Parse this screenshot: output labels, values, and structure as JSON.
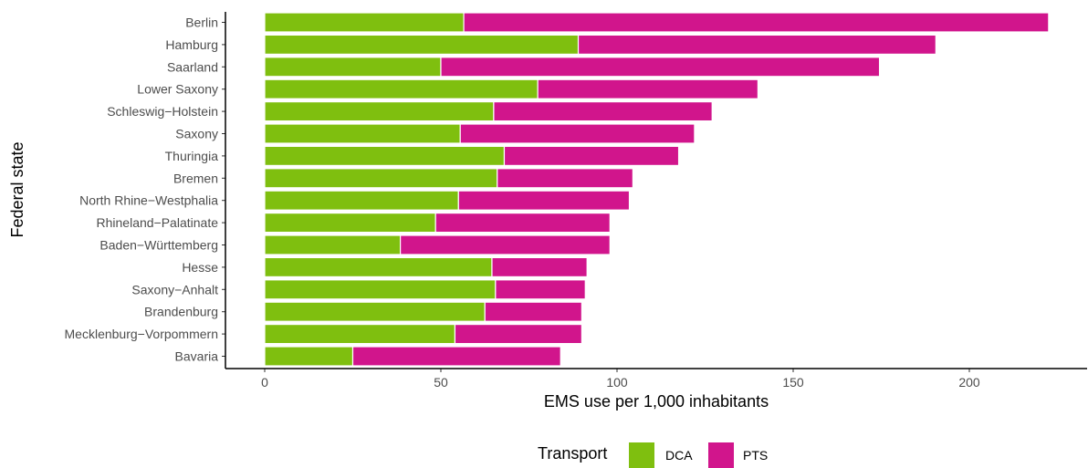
{
  "chart_data": {
    "type": "bar",
    "orientation": "horizontal",
    "stacked": true,
    "xlabel": "EMS use per 1,000 inhabitants",
    "ylabel": "Federal state",
    "xlim": [
      0,
      222
    ],
    "xticks": [
      0,
      50,
      100,
      150,
      200
    ],
    "grid": false,
    "legend_position": "bottom",
    "legend_title": "Transport",
    "categories": [
      "Berlin",
      "Hamburg",
      "Saarland",
      "Lower Saxony",
      "Schleswig−Holstein",
      "Saxony",
      "Thuringia",
      "Bremen",
      "North Rhine−Westphalia",
      "Rhineland−Palatinate",
      "Baden−Württemberg",
      "Hesse",
      "Saxony−Anhalt",
      "Brandenburg",
      "Mecklenburg−Vorpommern",
      "Bavaria"
    ],
    "series": [
      {
        "name": "DCA",
        "color": "#7fbf0f",
        "values": [
          56.5,
          89,
          50,
          77.5,
          65,
          55.5,
          68,
          66,
          55,
          48.5,
          38.5,
          64.5,
          65.5,
          62.5,
          54,
          25
        ]
      },
      {
        "name": "PTS",
        "color": "#d1158c",
        "values": [
          166,
          101.5,
          124.5,
          62.5,
          62,
          66.5,
          49.5,
          38.5,
          48.5,
          49.5,
          59.5,
          27,
          25.5,
          27.5,
          36,
          59
        ]
      }
    ]
  }
}
